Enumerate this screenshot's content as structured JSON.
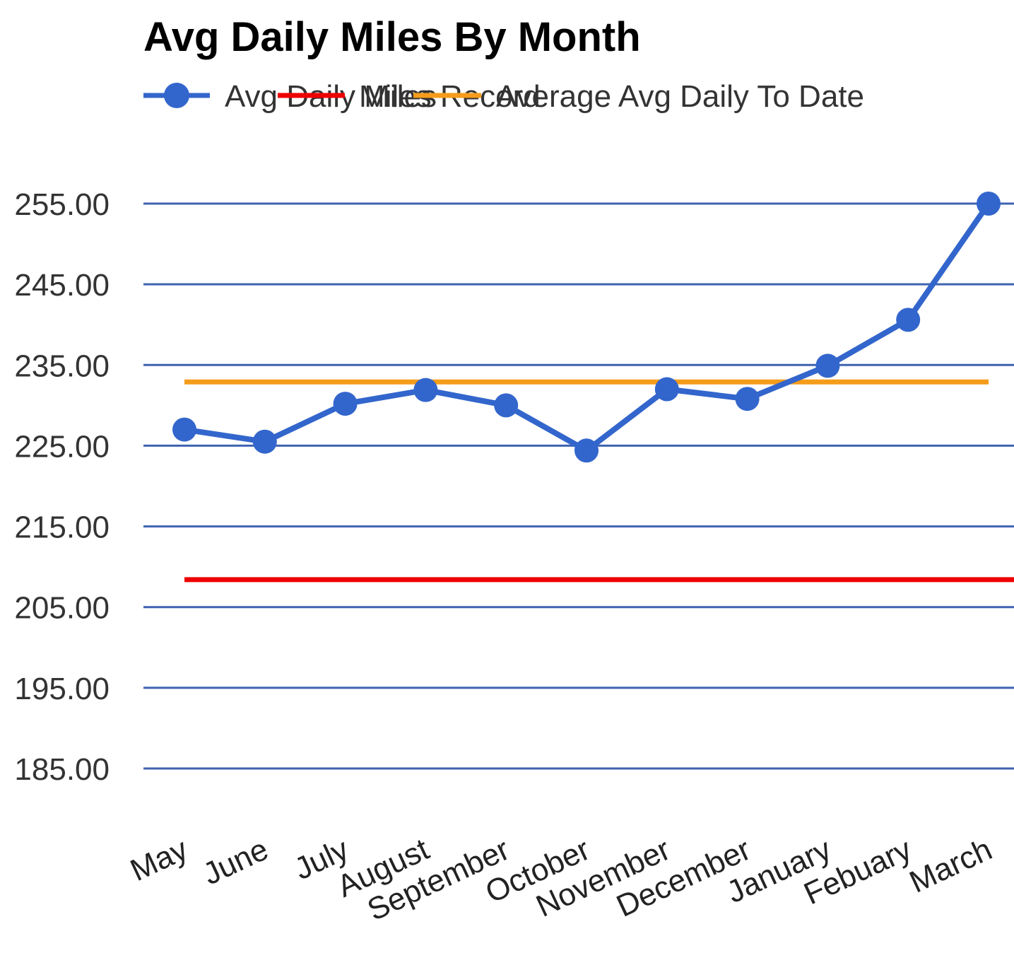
{
  "chart_data": {
    "type": "line",
    "title": "Avg Daily Miles By Month",
    "categories": [
      "May",
      "June",
      "July",
      "August",
      "September",
      "October",
      "November",
      "December",
      "January",
      "Febuary",
      "March"
    ],
    "series": [
      {
        "name": "Avg Daily Miles",
        "values": [
          227.0,
          225.5,
          230.2,
          231.9,
          230.0,
          224.4,
          232.0,
          230.8,
          234.9,
          240.6,
          255.0
        ],
        "color": "#3366cc",
        "markers": true
      },
      {
        "name": "Miles Record",
        "values": [
          208.4,
          208.4,
          208.4,
          208.4,
          208.4,
          208.4,
          208.4,
          208.4,
          208.4,
          208.4,
          208.4
        ],
        "color": "#ee0000",
        "markers": false
      },
      {
        "name": "Average Avg Daily To Date",
        "values": [
          232.9,
          232.9,
          232.9,
          232.9,
          232.9,
          232.9,
          232.9,
          232.9,
          232.9,
          232.9,
          232.9
        ],
        "color": "#f59c1a",
        "markers": false
      }
    ],
    "yticks": [
      "185.00",
      "195.00",
      "205.00",
      "215.00",
      "225.00",
      "235.00",
      "245.00",
      "255.00"
    ],
    "ytick_values": [
      185,
      195,
      205,
      215,
      225,
      235,
      245,
      255
    ],
    "ylim": [
      185,
      255
    ],
    "xlabel": "",
    "ylabel": "",
    "grid": true,
    "gridline_color": "#3f63b0",
    "legend_position": "top-left"
  }
}
